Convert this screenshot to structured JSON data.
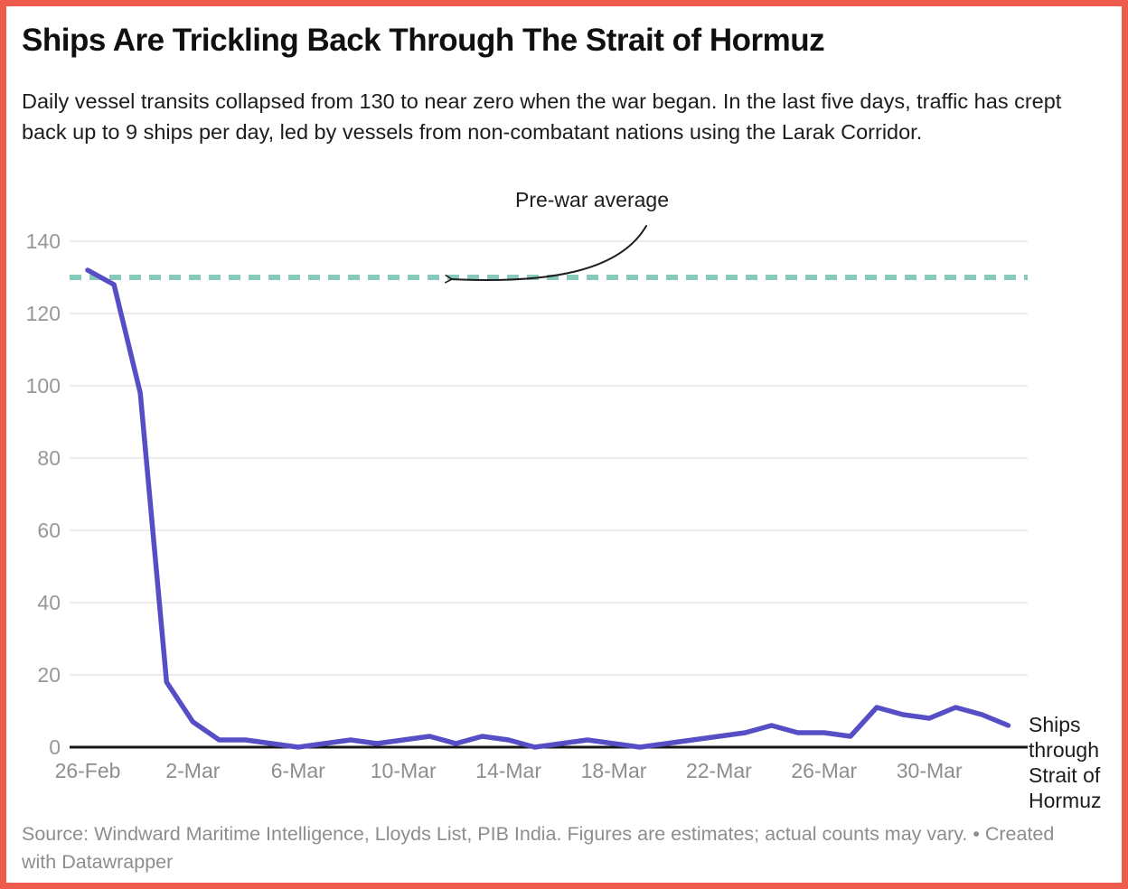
{
  "header": {
    "title": "Ships Are Trickling Back Through The Strait of Hormuz",
    "description": "Daily vessel transits collapsed from 130 to near zero when the war began. In the last five days, traffic has crept back up to 9 ships per day, led by vessels from non-combatant nations using the Larak Corridor."
  },
  "annotation": {
    "label": "Pre-war average"
  },
  "series_label": "Ships through Strait of Hormuz",
  "source": {
    "prefix": "Source: Windward Maritime Intelligence, Lloyds List, PIB India. Figures are estimates; actual counts may vary. • ",
    "attribution": "Created with Datawrapper"
  },
  "colors": {
    "border": "#ee5a4b",
    "line": "#564ec5",
    "average_line": "#87cabc",
    "gridline": "#e6e6e6",
    "axis": "#161616",
    "tick_label": "#979797"
  },
  "chart_data": {
    "type": "line",
    "title": "Ships Are Trickling Back Through The Strait of Hormuz",
    "x": [
      "26-Feb",
      "27-Feb",
      "28-Feb",
      "1-Mar",
      "2-Mar",
      "3-Mar",
      "4-Mar",
      "5-Mar",
      "6-Mar",
      "7-Mar",
      "8-Mar",
      "9-Mar",
      "10-Mar",
      "11-Mar",
      "12-Mar",
      "13-Mar",
      "14-Mar",
      "15-Mar",
      "16-Mar",
      "17-Mar",
      "18-Mar",
      "19-Mar",
      "20-Mar",
      "21-Mar",
      "22-Mar",
      "23-Mar",
      "24-Mar",
      "25-Mar",
      "26-Mar",
      "27-Mar",
      "28-Mar",
      "29-Mar",
      "30-Mar",
      "31-Mar",
      "1-Apr",
      "2-Apr"
    ],
    "series": [
      {
        "name": "Ships through Strait of Hormuz",
        "values": [
          132,
          128,
          98,
          18,
          7,
          2,
          2,
          1,
          0,
          1,
          2,
          1,
          2,
          3,
          1,
          3,
          2,
          0,
          1,
          2,
          1,
          0,
          1,
          2,
          3,
          4,
          6,
          4,
          4,
          3,
          11,
          9,
          8,
          11,
          9,
          6
        ]
      }
    ],
    "pre_war_average": 130,
    "ylim": [
      0,
      140
    ],
    "yticks": [
      0,
      20,
      40,
      60,
      80,
      100,
      120,
      140
    ],
    "xtick_labels": [
      "26-Feb",
      "2-Mar",
      "6-Mar",
      "10-Mar",
      "14-Mar",
      "18-Mar",
      "22-Mar",
      "26-Mar",
      "30-Mar"
    ],
    "xtick_positions": [
      0,
      4,
      8,
      12,
      16,
      20,
      24,
      28,
      32
    ],
    "grid": "horizontal-gridlines",
    "legend": "none",
    "annotations": [
      "Pre-war average"
    ]
  }
}
